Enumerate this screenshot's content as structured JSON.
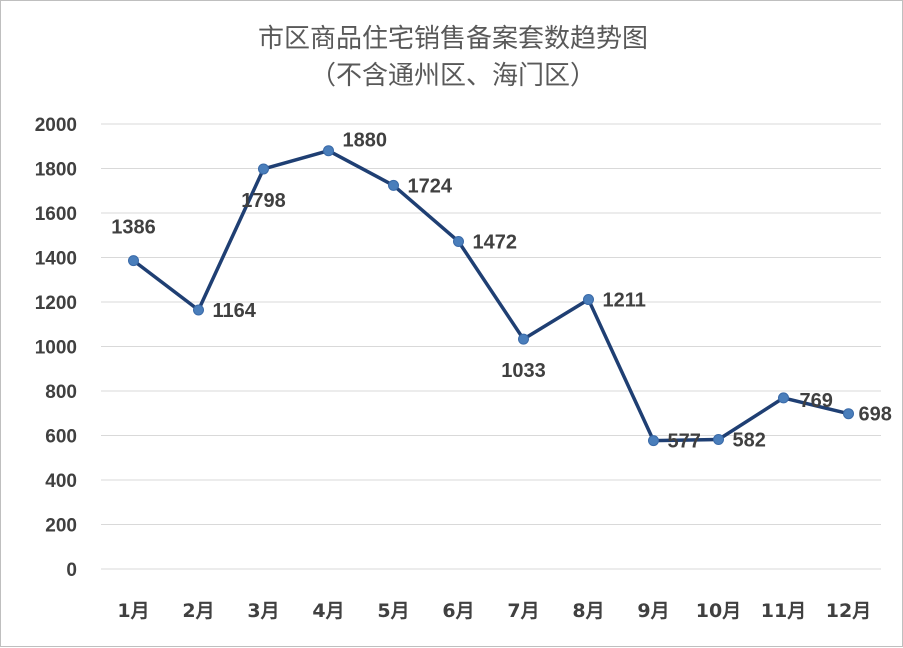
{
  "chart_data": {
    "type": "line",
    "title": "市区商品住宅销售备案套数趋势图",
    "subtitle": "（不含通州区、海门区）",
    "categories": [
      "1月",
      "2月",
      "3月",
      "4月",
      "5月",
      "6月",
      "7月",
      "8月",
      "9月",
      "10月",
      "11月",
      "12月"
    ],
    "series": [
      {
        "values": [
          1386,
          1164,
          1798,
          1880,
          1724,
          1472,
          1033,
          1211,
          577,
          582,
          769,
          698
        ]
      }
    ],
    "y_ticks": [
      "0",
      "200",
      "400",
      "600",
      "800",
      "1000",
      "1200",
      "1400",
      "1600",
      "1800",
      "2000"
    ],
    "ylim": [
      0,
      2000
    ],
    "grid": true,
    "legend": "none",
    "colors": {
      "line": "#1f3f73",
      "marker": "#4a7ebb"
    }
  }
}
